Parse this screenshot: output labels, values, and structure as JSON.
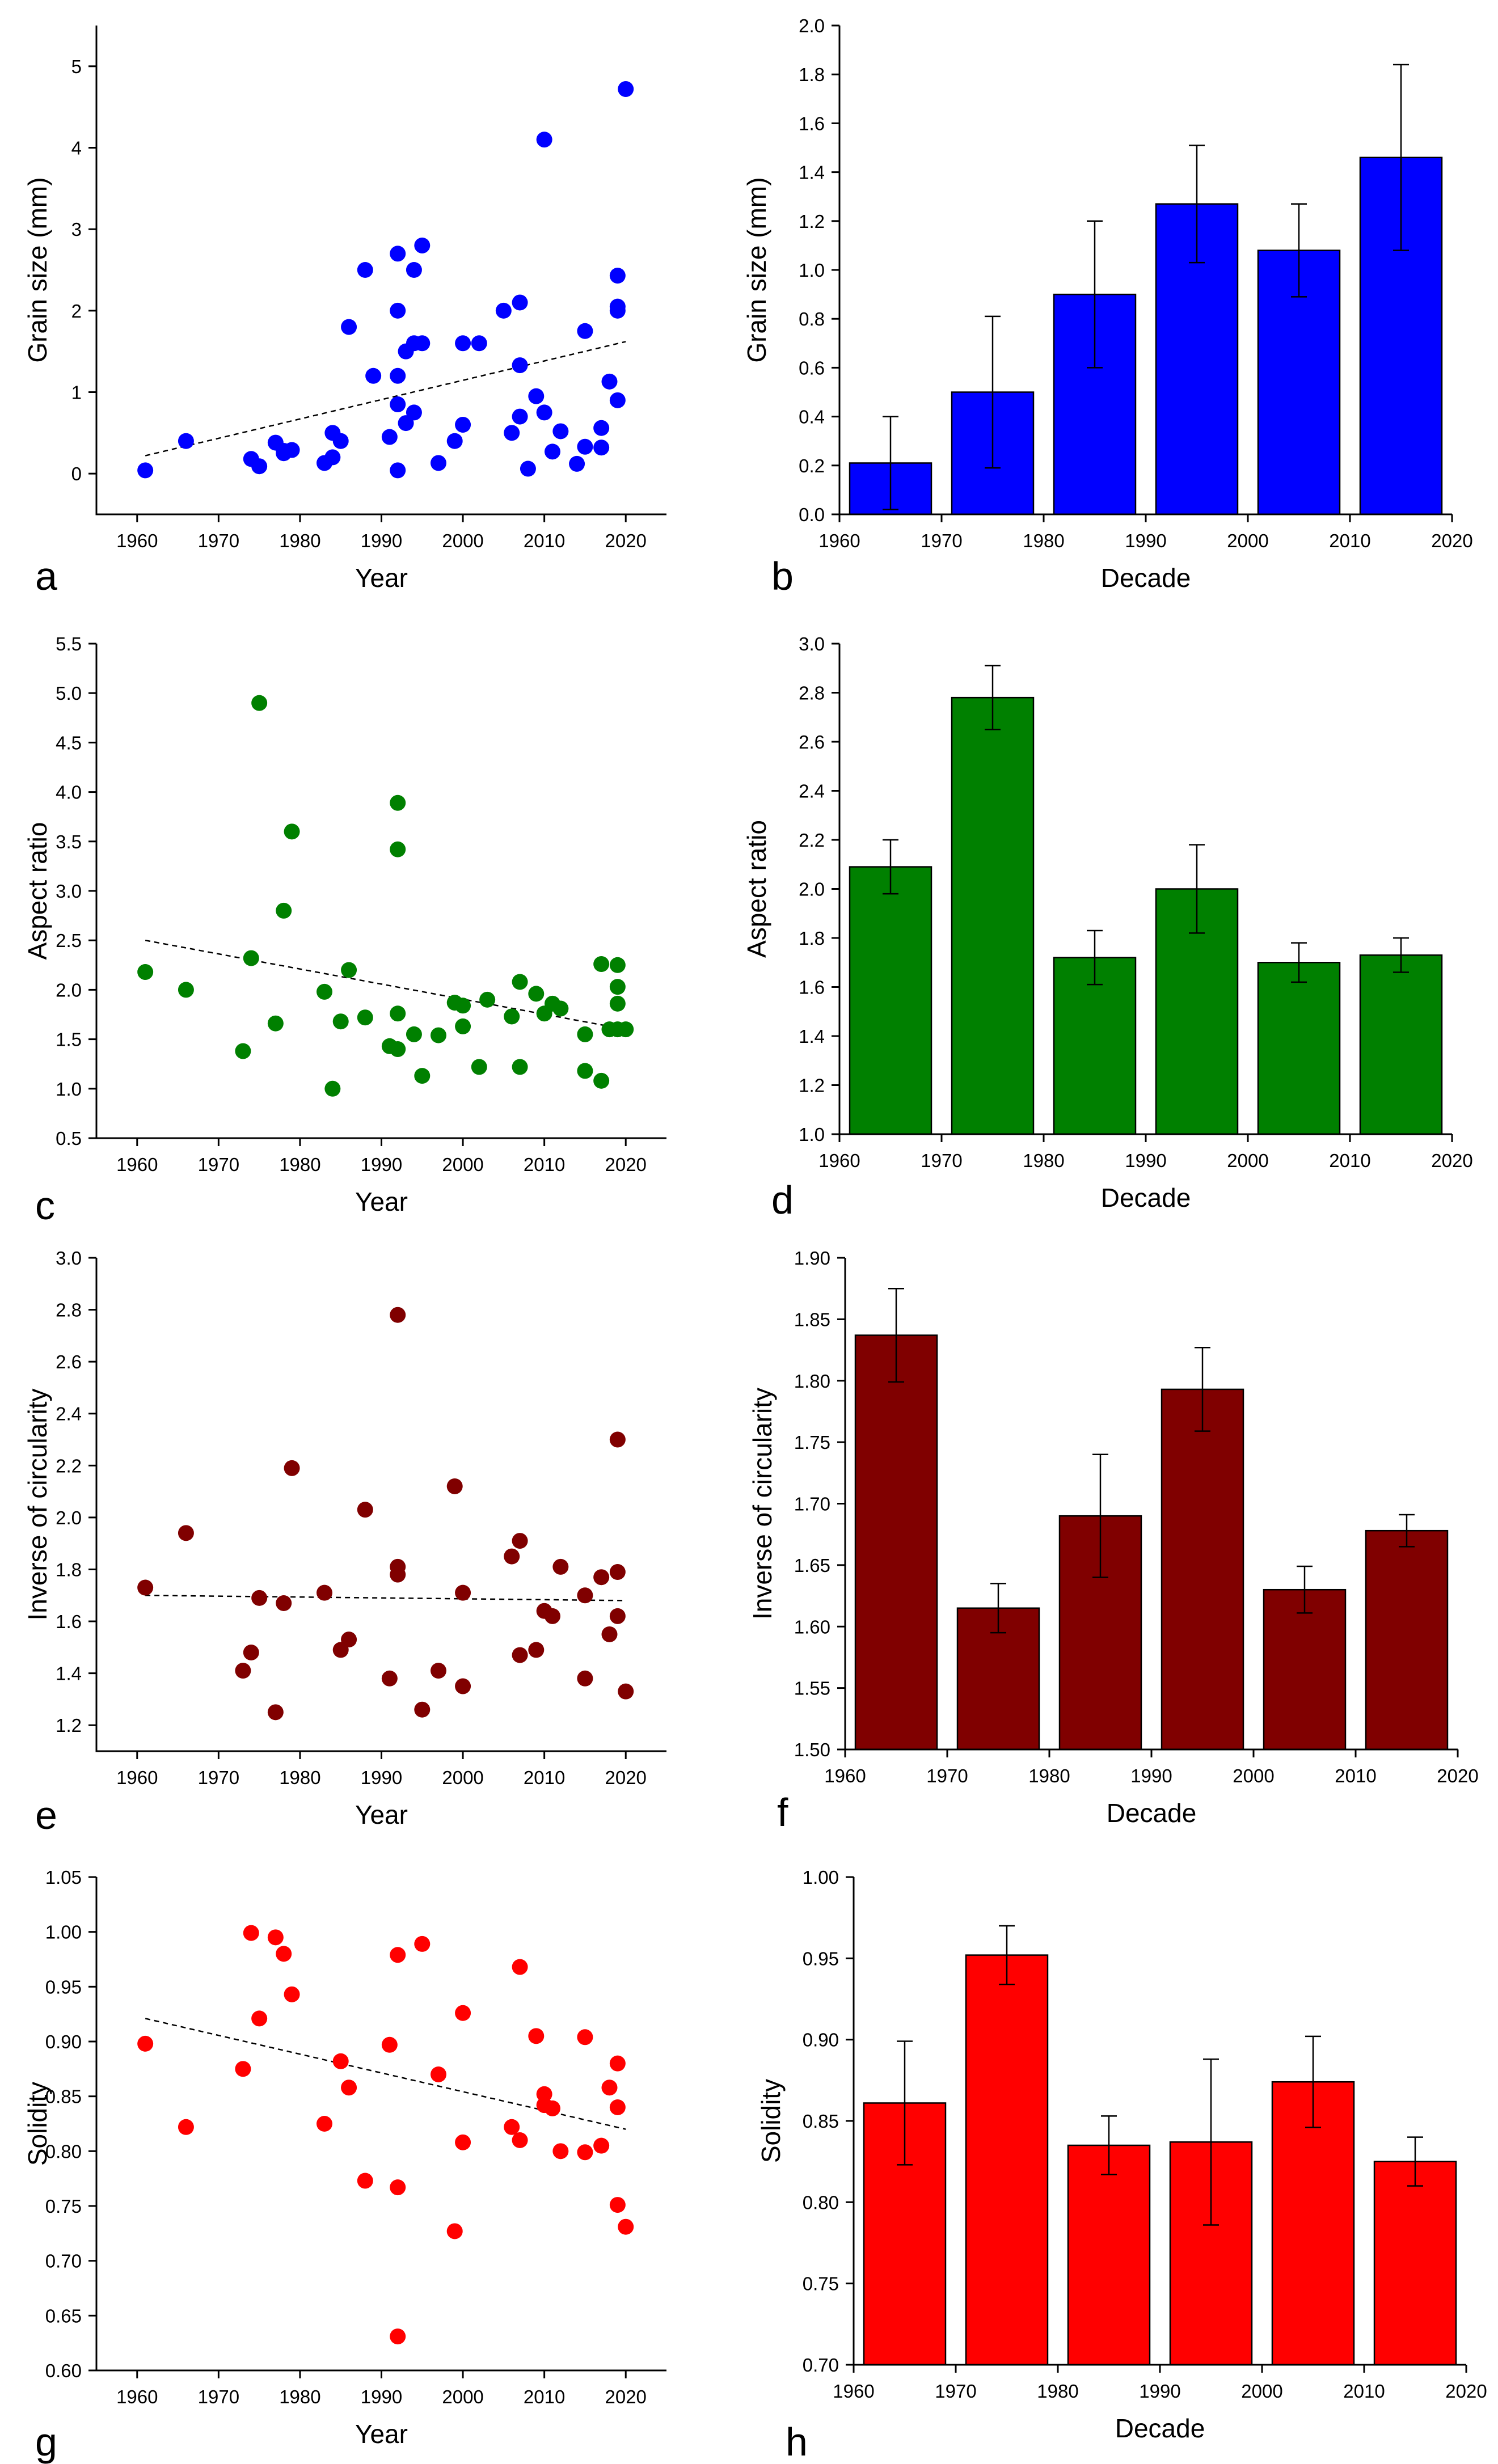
{
  "chart_data": [
    {
      "panel": "a",
      "type": "scatter",
      "xlabel": "Year",
      "ylabel": "Grain size (mm)",
      "xlim": [
        1955,
        2025
      ],
      "ylim": [
        -0.5,
        5.5
      ],
      "xticks": [
        1960,
        1970,
        1980,
        1990,
        2000,
        2010,
        2020
      ],
      "yticks": [
        0,
        1,
        2,
        3,
        4,
        5
      ],
      "marker_color": "#0000ff",
      "trendline": {
        "x": [
          1961,
          2020
        ],
        "y": [
          0.22,
          1.62
        ]
      },
      "points": [
        [
          1961,
          0.04
        ],
        [
          1966,
          0.4
        ],
        [
          1974,
          0.18
        ],
        [
          1975,
          0.09
        ],
        [
          1977,
          0.38
        ],
        [
          1978,
          0.25
        ],
        [
          1978,
          0.28
        ],
        [
          1979,
          0.29
        ],
        [
          1983,
          0.13
        ],
        [
          1984,
          0.2
        ],
        [
          1984,
          0.5
        ],
        [
          1985,
          0.4
        ],
        [
          1986,
          1.8
        ],
        [
          1988,
          2.5
        ],
        [
          1989,
          1.2
        ],
        [
          1991,
          0.45
        ],
        [
          1992,
          2.7
        ],
        [
          1992,
          2.0
        ],
        [
          1992,
          1.2
        ],
        [
          1992,
          0.85
        ],
        [
          1992,
          0.04
        ],
        [
          1993,
          1.5
        ],
        [
          1993,
          0.62
        ],
        [
          1994,
          1.6
        ],
        [
          1994,
          2.5
        ],
        [
          1994,
          0.75
        ],
        [
          1995,
          2.8
        ],
        [
          1995,
          1.6
        ],
        [
          1997,
          0.13
        ],
        [
          1999,
          0.4
        ],
        [
          2000,
          1.6
        ],
        [
          2000,
          0.6
        ],
        [
          2002,
          1.6
        ],
        [
          2005,
          2.0
        ],
        [
          2006,
          0.5
        ],
        [
          2007,
          2.1
        ],
        [
          2007,
          1.33
        ],
        [
          2007,
          0.7
        ],
        [
          2008,
          0.06
        ],
        [
          2009,
          0.95
        ],
        [
          2010,
          4.1
        ],
        [
          2010,
          0.75
        ],
        [
          2011,
          0.27
        ],
        [
          2012,
          0.52
        ],
        [
          2014,
          0.12
        ],
        [
          2015,
          1.75
        ],
        [
          2015,
          0.33
        ],
        [
          2017,
          0.56
        ],
        [
          2017,
          0.32
        ],
        [
          2018,
          1.13
        ],
        [
          2019,
          2.43
        ],
        [
          2019,
          2.05
        ],
        [
          2019,
          2.0
        ],
        [
          2019,
          0.9
        ],
        [
          2020,
          4.72
        ]
      ]
    },
    {
      "panel": "b",
      "type": "bar",
      "xlabel": "Decade",
      "ylabel": "Grain size (mm)",
      "xlim": [
        1960,
        2020
      ],
      "ylim": [
        0.0,
        2.0
      ],
      "xticks": [
        1960,
        1970,
        1980,
        1990,
        2000,
        2010,
        2020
      ],
      "yticks": [
        0.0,
        0.2,
        0.4,
        0.6,
        0.8,
        1.0,
        1.2,
        1.4,
        1.6,
        1.8,
        2.0
      ],
      "bar_color": "#0000ff",
      "bar_width_years": 8,
      "categories": [
        1965,
        1975,
        1985,
        1995,
        2005,
        2015
      ],
      "values": [
        0.21,
        0.5,
        0.9,
        1.27,
        1.08,
        1.46
      ],
      "errors": [
        0.19,
        0.31,
        0.3,
        0.24,
        0.19,
        0.38
      ]
    },
    {
      "panel": "c",
      "type": "scatter",
      "xlabel": "Year",
      "ylabel": "Aspect ratio",
      "xlim": [
        1955,
        2025
      ],
      "ylim": [
        0.5,
        5.5
      ],
      "xticks": [
        1960,
        1970,
        1980,
        1990,
        2000,
        2010,
        2020
      ],
      "yticks": [
        0.5,
        1.0,
        1.5,
        2.0,
        2.5,
        3.0,
        3.5,
        4.0,
        4.5,
        5.0,
        5.5
      ],
      "marker_color": "#008000",
      "trendline": {
        "x": [
          1961,
          2020
        ],
        "y": [
          2.5,
          1.6
        ]
      },
      "points": [
        [
          1961,
          2.18
        ],
        [
          1966,
          2.0
        ],
        [
          1973,
          1.38
        ],
        [
          1974,
          2.32
        ],
        [
          1975,
          4.9
        ],
        [
          1977,
          1.66
        ],
        [
          1978,
          2.8
        ],
        [
          1979,
          3.6
        ],
        [
          1983,
          1.98
        ],
        [
          1984,
          1.0
        ],
        [
          1985,
          1.68
        ],
        [
          1986,
          2.2
        ],
        [
          1988,
          1.72
        ],
        [
          1991,
          1.43
        ],
        [
          1992,
          3.89
        ],
        [
          1992,
          3.42
        ],
        [
          1992,
          1.76
        ],
        [
          1992,
          1.4
        ],
        [
          1994,
          1.55
        ],
        [
          1995,
          1.13
        ],
        [
          1997,
          1.54
        ],
        [
          1999,
          1.87
        ],
        [
          2000,
          1.84
        ],
        [
          2000,
          1.63
        ],
        [
          2002,
          1.22
        ],
        [
          2003,
          1.9
        ],
        [
          2006,
          1.73
        ],
        [
          2007,
          2.08
        ],
        [
          2007,
          1.22
        ],
        [
          2009,
          1.96
        ],
        [
          2010,
          1.76
        ],
        [
          2011,
          1.86
        ],
        [
          2012,
          1.81
        ],
        [
          2015,
          1.55
        ],
        [
          2015,
          1.18
        ],
        [
          2017,
          2.26
        ],
        [
          2017,
          1.08
        ],
        [
          2018,
          1.6
        ],
        [
          2019,
          2.25
        ],
        [
          2019,
          2.03
        ],
        [
          2019,
          1.86
        ],
        [
          2019,
          1.6
        ],
        [
          2020,
          1.6
        ]
      ]
    },
    {
      "panel": "d",
      "type": "bar",
      "xlabel": "Decade",
      "ylabel": "Aspect ratio",
      "xlim": [
        1960,
        2020
      ],
      "ylim": [
        1.0,
        3.0
      ],
      "xticks": [
        1960,
        1970,
        1980,
        1990,
        2000,
        2010,
        2020
      ],
      "yticks": [
        1.0,
        1.2,
        1.4,
        1.6,
        1.8,
        2.0,
        2.2,
        2.4,
        2.6,
        2.8,
        3.0
      ],
      "bar_color": "#008000",
      "bar_width_years": 8,
      "categories": [
        1965,
        1975,
        1985,
        1995,
        2005,
        2015
      ],
      "values": [
        2.09,
        2.78,
        1.72,
        2.0,
        1.7,
        1.73
      ],
      "errors": [
        0.11,
        0.13,
        0.11,
        0.18,
        0.08,
        0.07
      ]
    },
    {
      "panel": "e",
      "type": "scatter",
      "xlabel": "Year",
      "ylabel": "Inverse of circularity",
      "xlim": [
        1955,
        2025
      ],
      "ylim": [
        1.1,
        3.0
      ],
      "xticks": [
        1960,
        1970,
        1980,
        1990,
        2000,
        2010,
        2020
      ],
      "yticks": [
        1.2,
        1.4,
        1.6,
        1.8,
        2.0,
        2.2,
        2.4,
        2.6,
        2.8,
        3.0
      ],
      "marker_color": "#800000",
      "trendline": {
        "x": [
          1961,
          2020
        ],
        "y": [
          1.7,
          1.68
        ]
      },
      "points": [
        [
          1961,
          1.73
        ],
        [
          1966,
          1.94
        ],
        [
          1973,
          1.41
        ],
        [
          1974,
          1.48
        ],
        [
          1975,
          1.69
        ],
        [
          1977,
          1.25
        ],
        [
          1978,
          1.67
        ],
        [
          1979,
          2.19
        ],
        [
          1983,
          1.71
        ],
        [
          1985,
          1.49
        ],
        [
          1986,
          1.53
        ],
        [
          1988,
          2.03
        ],
        [
          1991,
          1.38
        ],
        [
          1992,
          2.78
        ],
        [
          1992,
          1.81
        ],
        [
          1992,
          1.78
        ],
        [
          1995,
          1.26
        ],
        [
          1997,
          1.41
        ],
        [
          1999,
          2.12
        ],
        [
          2000,
          1.71
        ],
        [
          2000,
          1.35
        ],
        [
          2006,
          1.85
        ],
        [
          2007,
          1.91
        ],
        [
          2007,
          1.47
        ],
        [
          2009,
          1.49
        ],
        [
          2010,
          1.64
        ],
        [
          2011,
          1.62
        ],
        [
          2012,
          1.81
        ],
        [
          2015,
          1.7
        ],
        [
          2015,
          1.38
        ],
        [
          2017,
          1.77
        ],
        [
          2018,
          1.55
        ],
        [
          2019,
          2.3
        ],
        [
          2019,
          1.79
        ],
        [
          2019,
          1.62
        ],
        [
          2020,
          1.33
        ]
      ]
    },
    {
      "panel": "f",
      "type": "bar",
      "xlabel": "Decade",
      "ylabel": "Inverse of circularity",
      "xlim": [
        1960,
        2020
      ],
      "ylim": [
        1.5,
        1.9
      ],
      "xticks": [
        1960,
        1970,
        1980,
        1990,
        2000,
        2010,
        2020
      ],
      "yticks": [
        1.5,
        1.55,
        1.6,
        1.65,
        1.7,
        1.75,
        1.8,
        1.85,
        1.9
      ],
      "bar_color": "#800000",
      "bar_width_years": 8,
      "categories": [
        1965,
        1975,
        1985,
        1995,
        2005,
        2015
      ],
      "values": [
        1.837,
        1.615,
        1.69,
        1.793,
        1.63,
        1.678
      ],
      "errors": [
        0.038,
        0.02,
        0.05,
        0.034,
        0.019,
        0.013
      ]
    },
    {
      "panel": "g",
      "type": "scatter",
      "xlabel": "Year",
      "ylabel": "Solidity",
      "xlim": [
        1955,
        2025
      ],
      "ylim": [
        0.6,
        1.05
      ],
      "xticks": [
        1960,
        1970,
        1980,
        1990,
        2000,
        2010,
        2020
      ],
      "yticks": [
        0.6,
        0.65,
        0.7,
        0.75,
        0.8,
        0.85,
        0.9,
        0.95,
        1.0,
        1.05
      ],
      "marker_color": "#ff0000",
      "trendline": {
        "x": [
          1961,
          2020
        ],
        "y": [
          0.921,
          0.82
        ]
      },
      "points": [
        [
          1961,
          0.898
        ],
        [
          1966,
          0.822
        ],
        [
          1973,
          0.875
        ],
        [
          1974,
          0.999
        ],
        [
          1975,
          0.921
        ],
        [
          1977,
          0.995
        ],
        [
          1978,
          0.98
        ],
        [
          1979,
          0.943
        ],
        [
          1983,
          0.825
        ],
        [
          1985,
          0.882
        ],
        [
          1986,
          0.858
        ],
        [
          1988,
          0.773
        ],
        [
          1991,
          0.897
        ],
        [
          1992,
          0.979
        ],
        [
          1992,
          0.767
        ],
        [
          1992,
          0.631
        ],
        [
          1995,
          0.989
        ],
        [
          1997,
          0.87
        ],
        [
          1999,
          0.727
        ],
        [
          2000,
          0.926
        ],
        [
          2000,
          0.808
        ],
        [
          2006,
          0.822
        ],
        [
          2007,
          0.968
        ],
        [
          2007,
          0.81
        ],
        [
          2009,
          0.905
        ],
        [
          2010,
          0.852
        ],
        [
          2010,
          0.842
        ],
        [
          2011,
          0.839
        ],
        [
          2012,
          0.8
        ],
        [
          2015,
          0.904
        ],
        [
          2015,
          0.799
        ],
        [
          2017,
          0.805
        ],
        [
          2018,
          0.858
        ],
        [
          2019,
          0.88
        ],
        [
          2019,
          0.84
        ],
        [
          2019,
          0.751
        ],
        [
          2020,
          0.731
        ]
      ]
    },
    {
      "panel": "h",
      "type": "bar",
      "xlabel": "Decade",
      "ylabel": "Solidity",
      "xlim": [
        1960,
        2020
      ],
      "ylim": [
        0.7,
        1.0
      ],
      "xticks": [
        1960,
        1970,
        1980,
        1990,
        2000,
        2010,
        2020
      ],
      "yticks": [
        0.7,
        0.75,
        0.8,
        0.85,
        0.9,
        0.95,
        1.0
      ],
      "bar_color": "#ff0000",
      "bar_width_years": 8,
      "categories": [
        1965,
        1975,
        1985,
        1995,
        2005,
        2015
      ],
      "values": [
        0.861,
        0.952,
        0.835,
        0.837,
        0.874,
        0.825
      ],
      "errors": [
        0.038,
        0.018,
        0.018,
        0.051,
        0.028,
        0.015
      ]
    }
  ]
}
